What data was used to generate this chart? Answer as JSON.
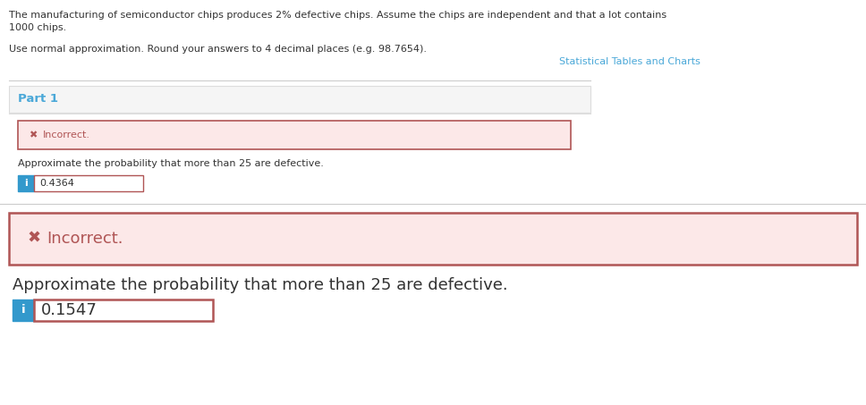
{
  "bg_color": "#ffffff",
  "text_intro_line1": "The manufacturing of semiconductor chips produces 2% defective chips. Assume the chips are independent and that a lot contains",
  "text_intro_line2": "1000 chips.",
  "text_normal_approx": "Use normal approximation. Round your answers to 4 decimal places (e.g. 98.7654).",
  "text_stat_tables": "Statistical Tables and Charts",
  "text_stat_tables_color": "#4aa8d8",
  "text_part1": "Part 1",
  "text_part1_color": "#4aa8d8",
  "part1_bg": "#f5f5f5",
  "part1_border": "#dddddd",
  "incorrect_box1_bg": "#fce8e8",
  "incorrect_box1_border": "#b05555",
  "incorrect_x_color": "#b05555",
  "text_incorrect1": "Incorrect.",
  "text_approx_label": "Approximate the probability that more than 25 are defective.",
  "input_box1_value": "0.4364",
  "input_box1_border": "#b05555",
  "info_btn_color": "#3399cc",
  "incorrect_box2_bg": "#fce8e8",
  "incorrect_box2_border": "#b05555",
  "text_incorrect2": "Incorrect.",
  "text_approx_label2": "Approximate the probability that more than 25 are defective.",
  "input_box2_value": "0.1547",
  "input_box2_border": "#b05555",
  "divider_color": "#cccccc",
  "text_color": "#333333",
  "font_small": 8.0,
  "font_medium": 9.5,
  "font_large": 13.0
}
